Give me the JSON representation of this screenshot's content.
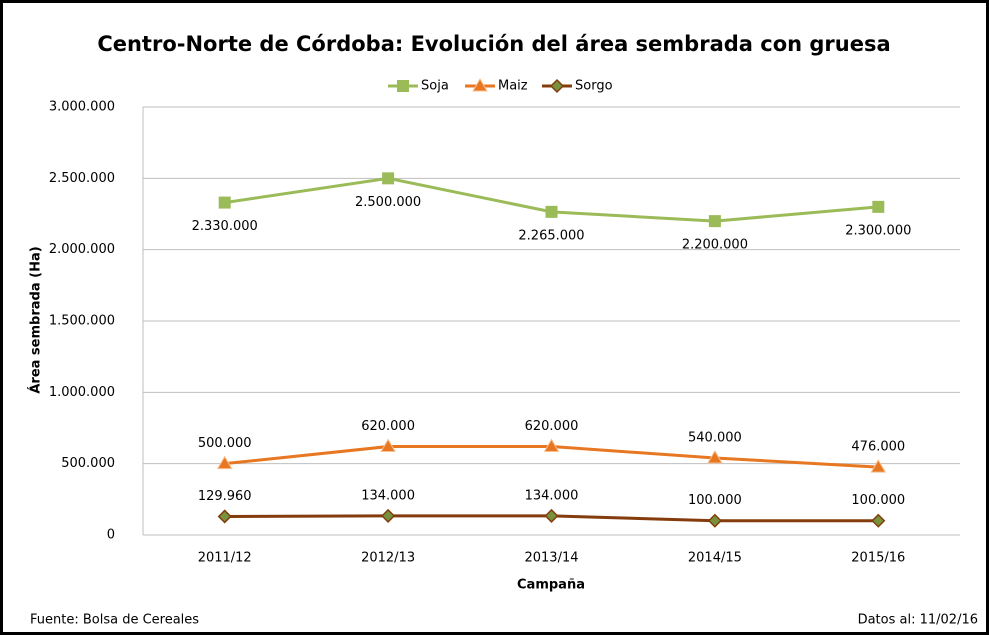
{
  "chart_data": {
    "type": "line",
    "title": "Centro-Norte de Córdoba: Evolución del área sembrada con gruesa",
    "xlabel": "Campaña",
    "ylabel": "Área sembrada (Ha)",
    "source": "Fuente: Bolsa de Cereales",
    "date_note": "Datos al: 11/02/16",
    "categories": [
      "2011/12",
      "2012/13",
      "2013/14",
      "2014/15",
      "2015/16"
    ],
    "series": [
      {
        "name": "Soja",
        "color": "#9bbb59",
        "marker": "square",
        "label_position": "below",
        "values": [
          2330000,
          2500000,
          2265000,
          2200000,
          2300000
        ],
        "value_labels": [
          "2.330.000",
          "2.500.000",
          "2.265.000",
          "2.200.000",
          "2.300.000"
        ]
      },
      {
        "name": "Maiz",
        "color": "#e87722",
        "marker": "triangle",
        "label_position": "above",
        "values": [
          500000,
          620000,
          620000,
          540000,
          476000
        ],
        "value_labels": [
          "500.000",
          "620.000",
          "620.000",
          "540.000",
          "476.000"
        ]
      },
      {
        "name": "Sorgo",
        "color": "#843c0c",
        "marker": "diamond",
        "label_position": "above",
        "values": [
          129960,
          134000,
          134000,
          100000,
          100000
        ],
        "value_labels": [
          "129.960",
          "134.000",
          "134.000",
          "100.000",
          "100.000"
        ]
      }
    ],
    "ylim": [
      0,
      3000000
    ],
    "yticks": [
      0,
      {
        "value": 500000,
        "label": "500.000"
      },
      {
        "value": 1000000,
        "label": "1.000.000"
      },
      {
        "value": 1500000,
        "label": "1.500.000"
      },
      {
        "value": 2000000,
        "label": "2.000.000"
      },
      {
        "value": 2500000,
        "label": "2.500.000"
      },
      {
        "value": 3000000,
        "label": "3.000.000"
      }
    ],
    "grid": true,
    "legend": "top"
  }
}
